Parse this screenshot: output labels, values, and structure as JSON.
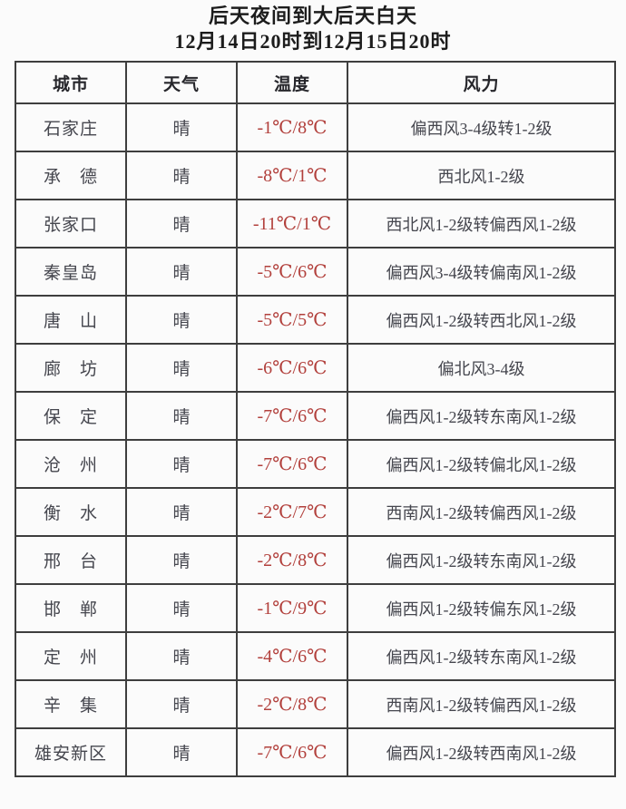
{
  "title": {
    "line1": "后天夜间到大后天白天",
    "line2": "12月14日20时到12月15日20时"
  },
  "table": {
    "headers": [
      "城市",
      "天气",
      "温度",
      "风力"
    ],
    "rows": [
      {
        "city": "石家庄",
        "weather": "晴",
        "temp": "-1℃/8℃",
        "wind": "偏西风3-4级转1-2级"
      },
      {
        "city": "承　德",
        "weather": "晴",
        "temp": "-8℃/1℃",
        "wind": "西北风1-2级"
      },
      {
        "city": "张家口",
        "weather": "晴",
        "temp": "-11℃/1℃",
        "wind": "西北风1-2级转偏西风1-2级"
      },
      {
        "city": "秦皇岛",
        "weather": "晴",
        "temp": "-5℃/6℃",
        "wind": "偏西风3-4级转偏南风1-2级"
      },
      {
        "city": "唐　山",
        "weather": "晴",
        "temp": "-5℃/5℃",
        "wind": "偏西风1-2级转西北风1-2级"
      },
      {
        "city": "廊　坊",
        "weather": "晴",
        "temp": "-6℃/6℃",
        "wind": "偏北风3-4级"
      },
      {
        "city": "保　定",
        "weather": "晴",
        "temp": "-7℃/6℃",
        "wind": "偏西风1-2级转东南风1-2级"
      },
      {
        "city": "沧　州",
        "weather": "晴",
        "temp": "-7℃/6℃",
        "wind": "偏西风1-2级转偏北风1-2级"
      },
      {
        "city": "衡　水",
        "weather": "晴",
        "temp": "-2℃/7℃",
        "wind": "西南风1-2级转偏西风1-2级"
      },
      {
        "city": "邢　台",
        "weather": "晴",
        "temp": "-2℃/8℃",
        "wind": "偏西风1-2级转东南风1-2级"
      },
      {
        "city": "邯　郸",
        "weather": "晴",
        "temp": "-1℃/9℃",
        "wind": "偏西风1-2级转偏东风1-2级"
      },
      {
        "city": "定　州",
        "weather": "晴",
        "temp": "-4℃/6℃",
        "wind": "偏西风1-2级转东南风1-2级"
      },
      {
        "city": "辛　集",
        "weather": "晴",
        "temp": "-2℃/8℃",
        "wind": "西南风1-2级转偏西风1-2级"
      },
      {
        "city": "雄安新区",
        "weather": "晴",
        "temp": "-7℃/6℃",
        "wind": "偏西风1-2级转西南风1-2级"
      }
    ]
  },
  "colors": {
    "title_text": "#1c1c1c",
    "header_text": "#26262b",
    "body_text": "#45464e",
    "temperature_text": "#b2403c",
    "table_border": "#3e3e3e",
    "background": "#fbfbfb"
  }
}
